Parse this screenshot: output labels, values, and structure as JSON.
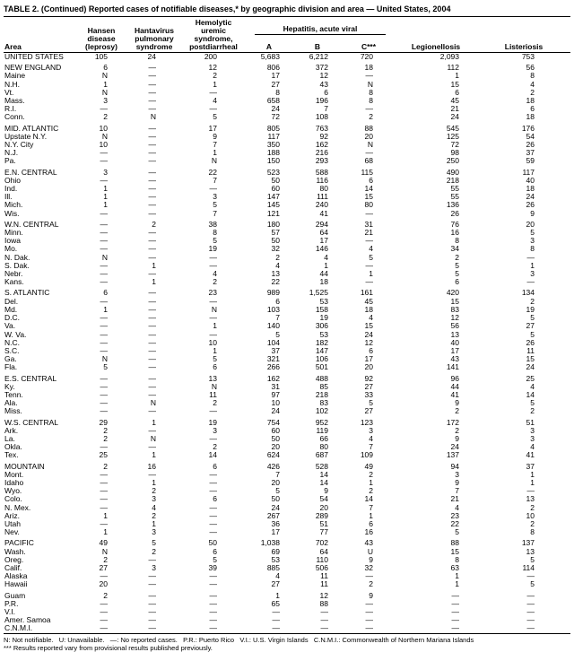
{
  "title": "TABLE 2. (Continued) Reported cases of notifiable diseases,* by geographic division and area — United States, 2004",
  "table": {
    "headers": {
      "area": "Area",
      "hansen": "Hansen\ndisease\n(leprosy)",
      "hantavirus": "Hantavirus\npulmonary\nsyndrome",
      "hus": "Hemolytic\nuremic\nsyndrome,\npostdiarrheal",
      "hepatitis_group": "Hepatitis, acute viral",
      "hep_a": "A",
      "hep_b": "B",
      "hep_c": "C***",
      "legionellosis": "Legionellosis",
      "listeriosis": "Listeriosis"
    },
    "groups": [
      [
        [
          "UNITED STATES",
          "105",
          "24",
          "200",
          "5,683",
          "6,212",
          "720",
          "2,093",
          "753"
        ]
      ],
      [
        [
          "NEW ENGLAND",
          "6",
          "—",
          "12",
          "806",
          "372",
          "18",
          "112",
          "56"
        ],
        [
          "Maine",
          "N",
          "—",
          "2",
          "17",
          "12",
          "—",
          "1",
          "8"
        ],
        [
          "N.H.",
          "1",
          "—",
          "1",
          "27",
          "43",
          "N",
          "15",
          "4"
        ],
        [
          "Vt.",
          "N",
          "—",
          "—",
          "8",
          "6",
          "8",
          "6",
          "2"
        ],
        [
          "Mass.",
          "3",
          "—",
          "4",
          "658",
          "196",
          "8",
          "45",
          "18"
        ],
        [
          "R.I.",
          "—",
          "—",
          "—",
          "24",
          "7",
          "—",
          "21",
          "6"
        ],
        [
          "Conn.",
          "2",
          "N",
          "5",
          "72",
          "108",
          "2",
          "24",
          "18"
        ]
      ],
      [
        [
          "MID. ATLANTIC",
          "10",
          "—",
          "17",
          "805",
          "763",
          "88",
          "545",
          "176"
        ],
        [
          "Upstate N.Y.",
          "N",
          "—",
          "9",
          "117",
          "92",
          "20",
          "125",
          "54"
        ],
        [
          "N.Y. City",
          "10",
          "—",
          "7",
          "350",
          "162",
          "N",
          "72",
          "26"
        ],
        [
          "N.J.",
          "—",
          "—",
          "1",
          "188",
          "216",
          "—",
          "98",
          "37"
        ],
        [
          "Pa.",
          "—",
          "—",
          "N",
          "150",
          "293",
          "68",
          "250",
          "59"
        ]
      ],
      [
        [
          "E.N. CENTRAL",
          "3",
          "—",
          "22",
          "523",
          "588",
          "115",
          "490",
          "117"
        ],
        [
          "Ohio",
          "—",
          "—",
          "7",
          "50",
          "116",
          "6",
          "218",
          "40"
        ],
        [
          "Ind.",
          "1",
          "—",
          "—",
          "60",
          "80",
          "14",
          "55",
          "18"
        ],
        [
          "Ill.",
          "1",
          "—",
          "3",
          "147",
          "111",
          "15",
          "55",
          "24"
        ],
        [
          "Mich.",
          "1",
          "—",
          "5",
          "145",
          "240",
          "80",
          "136",
          "26"
        ],
        [
          "Wis.",
          "—",
          "—",
          "7",
          "121",
          "41",
          "—",
          "26",
          "9"
        ]
      ],
      [
        [
          "W.N. CENTRAL",
          "—",
          "2",
          "38",
          "180",
          "294",
          "31",
          "76",
          "20"
        ],
        [
          "Minn.",
          "—",
          "—",
          "8",
          "57",
          "64",
          "21",
          "16",
          "5"
        ],
        [
          "Iowa",
          "—",
          "—",
          "5",
          "50",
          "17",
          "—",
          "8",
          "3"
        ],
        [
          "Mo.",
          "—",
          "—",
          "19",
          "32",
          "146",
          "4",
          "34",
          "8"
        ],
        [
          "N. Dak.",
          "N",
          "—",
          "—",
          "2",
          "4",
          "5",
          "2",
          "—"
        ],
        [
          "S. Dak.",
          "—",
          "1",
          "—",
          "4",
          "1",
          "—",
          "5",
          "1"
        ],
        [
          "Nebr.",
          "—",
          "—",
          "4",
          "13",
          "44",
          "1",
          "5",
          "3"
        ],
        [
          "Kans.",
          "—",
          "1",
          "2",
          "22",
          "18",
          "—",
          "6",
          "—"
        ]
      ],
      [
        [
          "S. ATLANTIC",
          "6",
          "—",
          "23",
          "989",
          "1,525",
          "161",
          "420",
          "134"
        ],
        [
          "Del.",
          "—",
          "—",
          "—",
          "6",
          "53",
          "45",
          "15",
          "2"
        ],
        [
          "Md.",
          "1",
          "—",
          "N",
          "103",
          "158",
          "18",
          "83",
          "19"
        ],
        [
          "D.C.",
          "—",
          "—",
          "—",
          "7",
          "19",
          "4",
          "12",
          "5"
        ],
        [
          "Va.",
          "—",
          "—",
          "1",
          "140",
          "306",
          "15",
          "56",
          "27"
        ],
        [
          "W. Va.",
          "—",
          "—",
          "—",
          "5",
          "53",
          "24",
          "13",
          "5"
        ],
        [
          "N.C.",
          "—",
          "—",
          "10",
          "104",
          "182",
          "12",
          "40",
          "26"
        ],
        [
          "S.C.",
          "—",
          "—",
          "1",
          "37",
          "147",
          "6",
          "17",
          "11"
        ],
        [
          "Ga.",
          "N",
          "—",
          "5",
          "321",
          "106",
          "17",
          "43",
          "15"
        ],
        [
          "Fla.",
          "5",
          "—",
          "6",
          "266",
          "501",
          "20",
          "141",
          "24"
        ]
      ],
      [
        [
          "E.S. CENTRAL",
          "—",
          "—",
          "13",
          "162",
          "488",
          "92",
          "96",
          "25"
        ],
        [
          "Ky.",
          "—",
          "—",
          "N",
          "31",
          "85",
          "27",
          "44",
          "4"
        ],
        [
          "Tenn.",
          "—",
          "—",
          "11",
          "97",
          "218",
          "33",
          "41",
          "14"
        ],
        [
          "Ala.",
          "—",
          "N",
          "2",
          "10",
          "83",
          "5",
          "9",
          "5"
        ],
        [
          "Miss.",
          "—",
          "—",
          "—",
          "24",
          "102",
          "27",
          "2",
          "2"
        ]
      ],
      [
        [
          "W.S. CENTRAL",
          "29",
          "1",
          "19",
          "754",
          "952",
          "123",
          "172",
          "51"
        ],
        [
          "Ark.",
          "2",
          "—",
          "3",
          "60",
          "119",
          "3",
          "2",
          "3"
        ],
        [
          "La.",
          "2",
          "N",
          "—",
          "50",
          "66",
          "4",
          "9",
          "3"
        ],
        [
          "Okla.",
          "—",
          "—",
          "2",
          "20",
          "80",
          "7",
          "24",
          "4"
        ],
        [
          "Tex.",
          "25",
          "1",
          "14",
          "624",
          "687",
          "109",
          "137",
          "41"
        ]
      ],
      [
        [
          "MOUNTAIN",
          "2",
          "16",
          "6",
          "426",
          "528",
          "49",
          "94",
          "37"
        ],
        [
          "Mont.",
          "—",
          "—",
          "—",
          "7",
          "14",
          "2",
          "3",
          "1"
        ],
        [
          "Idaho",
          "—",
          "1",
          "—",
          "20",
          "14",
          "1",
          "9",
          "1"
        ],
        [
          "Wyo.",
          "—",
          "2",
          "—",
          "5",
          "9",
          "2",
          "7",
          "—"
        ],
        [
          "Colo.",
          "—",
          "3",
          "6",
          "50",
          "54",
          "14",
          "21",
          "13"
        ],
        [
          "N. Mex.",
          "—",
          "4",
          "—",
          "24",
          "20",
          "7",
          "4",
          "2"
        ],
        [
          "Ariz.",
          "1",
          "2",
          "—",
          "267",
          "289",
          "1",
          "23",
          "10"
        ],
        [
          "Utah",
          "—",
          "1",
          "—",
          "36",
          "51",
          "6",
          "22",
          "2"
        ],
        [
          "Nev.",
          "1",
          "3",
          "—",
          "17",
          "77",
          "16",
          "5",
          "8"
        ]
      ],
      [
        [
          "PACIFIC",
          "49",
          "5",
          "50",
          "1,038",
          "702",
          "43",
          "88",
          "137"
        ],
        [
          "Wash.",
          "N",
          "2",
          "6",
          "69",
          "64",
          "U",
          "15",
          "13"
        ],
        [
          "Oreg.",
          "2",
          "—",
          "5",
          "53",
          "110",
          "9",
          "8",
          "5"
        ],
        [
          "Calif.",
          "27",
          "3",
          "39",
          "885",
          "506",
          "32",
          "63",
          "114"
        ],
        [
          "Alaska",
          "—",
          "—",
          "—",
          "4",
          "11",
          "—",
          "1",
          "—"
        ],
        [
          "Hawaii",
          "20",
          "—",
          "—",
          "27",
          "11",
          "2",
          "1",
          "5"
        ]
      ],
      [
        [
          "Guam",
          "2",
          "—",
          "—",
          "1",
          "12",
          "9",
          "—",
          "—"
        ],
        [
          "P.R.",
          "—",
          "—",
          "—",
          "65",
          "88",
          "—",
          "—",
          "—"
        ],
        [
          "V.I.",
          "—",
          "—",
          "—",
          "—",
          "—",
          "—",
          "—",
          "—"
        ],
        [
          "Amer. Samoa",
          "—",
          "—",
          "—",
          "—",
          "—",
          "—",
          "—",
          "—"
        ],
        [
          "C.N.M.I.",
          "—",
          "—",
          "—",
          "—",
          "—",
          "—",
          "—",
          "—"
        ]
      ]
    ]
  },
  "footnotes": {
    "line1": "N: Not notifiable.   U: Unavailable.   —: No reported cases.   P.R.: Puerto Rico   V.I.: U.S. Virgin Islands   C.N.M.I.: Commonwealth of Northern Mariana Islands",
    "line2": "*** Results reported vary from provisional results published previously."
  }
}
